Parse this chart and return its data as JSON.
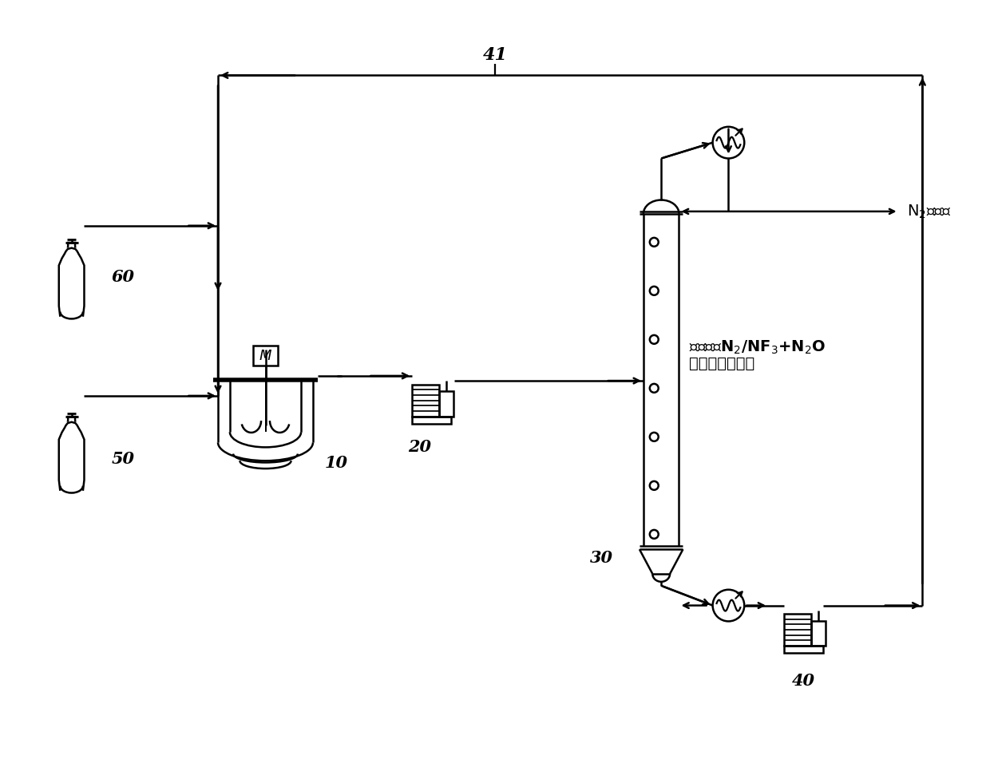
{
  "bg_color": "#ffffff",
  "line_color": "#000000",
  "fig_width": 12.4,
  "fig_height": 9.66,
  "label_41": "41",
  "label_60": "60",
  "label_50": "50",
  "label_10": "10",
  "label_20": "20",
  "label_30": "30",
  "label_40": "40",
  "label_N2": "N$_2$排气口",
  "label_column_line1": "用于分离N$_2$/NF$_3$+N$_2$O",
  "label_column_line2": "混合物的蕍馏柱",
  "font_size_labels": 15,
  "font_size_small": 13,
  "font_size_column": 14
}
